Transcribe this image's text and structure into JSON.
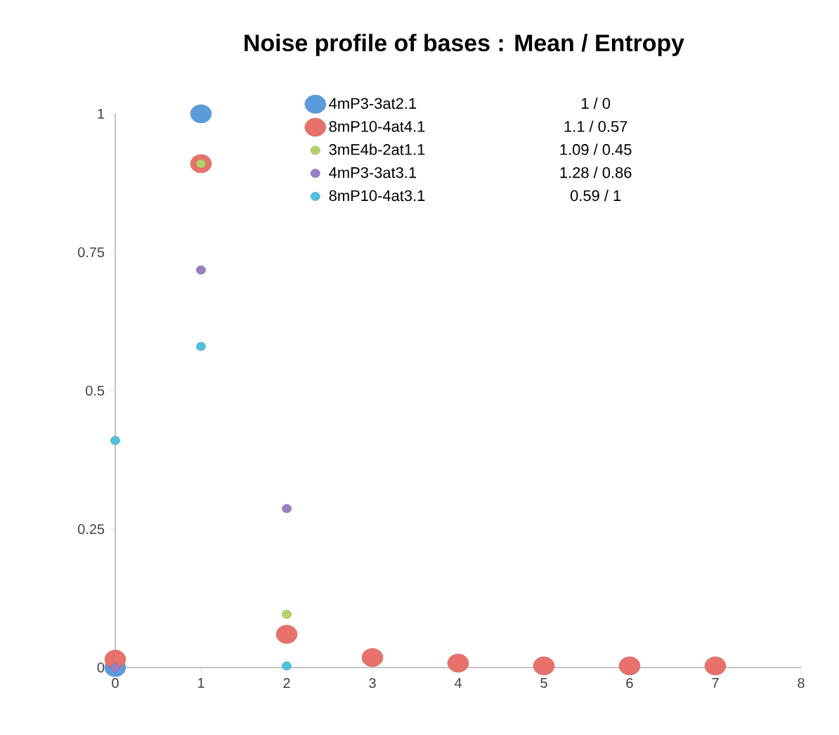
{
  "chart_data": {
    "type": "scatter",
    "title": "Noise profile of bases : Mean / Entropy",
    "xlim": [
      0,
      8
    ],
    "xticks": [
      0,
      1,
      2,
      3,
      4,
      5,
      6,
      7,
      8
    ],
    "ylim": [
      0,
      1
    ],
    "yticks": [
      0,
      0.25,
      0.5,
      0.75,
      1
    ],
    "marker": "circle",
    "legend": "top",
    "series": [
      {
        "name": "4mP3-3at2.1",
        "color": "#5b9bdc",
        "x": [
          0,
          1
        ],
        "values": [
          0,
          1
        ]
      },
      {
        "name": "8mP10-4at4.1",
        "color": "#e8716c",
        "x": [
          0,
          1,
          2,
          3,
          4,
          5,
          6,
          7
        ],
        "values": [
          0.015,
          0.91,
          0.06,
          0.018,
          0.008,
          0.003,
          0.003,
          0.003
        ]
      },
      {
        "name": "3mE4b-2at1.1",
        "color": "#b3d36a",
        "x": [
          1,
          2
        ],
        "values": [
          0.91,
          0.096
        ]
      },
      {
        "name": "4mP3-3at3.1",
        "color": "#9a7fc4",
        "x": [
          0,
          1,
          2
        ],
        "values": [
          0,
          0.718,
          0.287
        ]
      },
      {
        "name": "8mP10-4at3.1",
        "color": "#4fc3dd",
        "x": [
          0,
          1,
          2
        ],
        "values": [
          0.41,
          0.58,
          0.003
        ]
      }
    ],
    "annotations": [
      "1 / 0",
      "1.1 / 0.57",
      "1.09 / 0.45",
      "1.28 / 0.86",
      "0.59 / 1"
    ]
  }
}
